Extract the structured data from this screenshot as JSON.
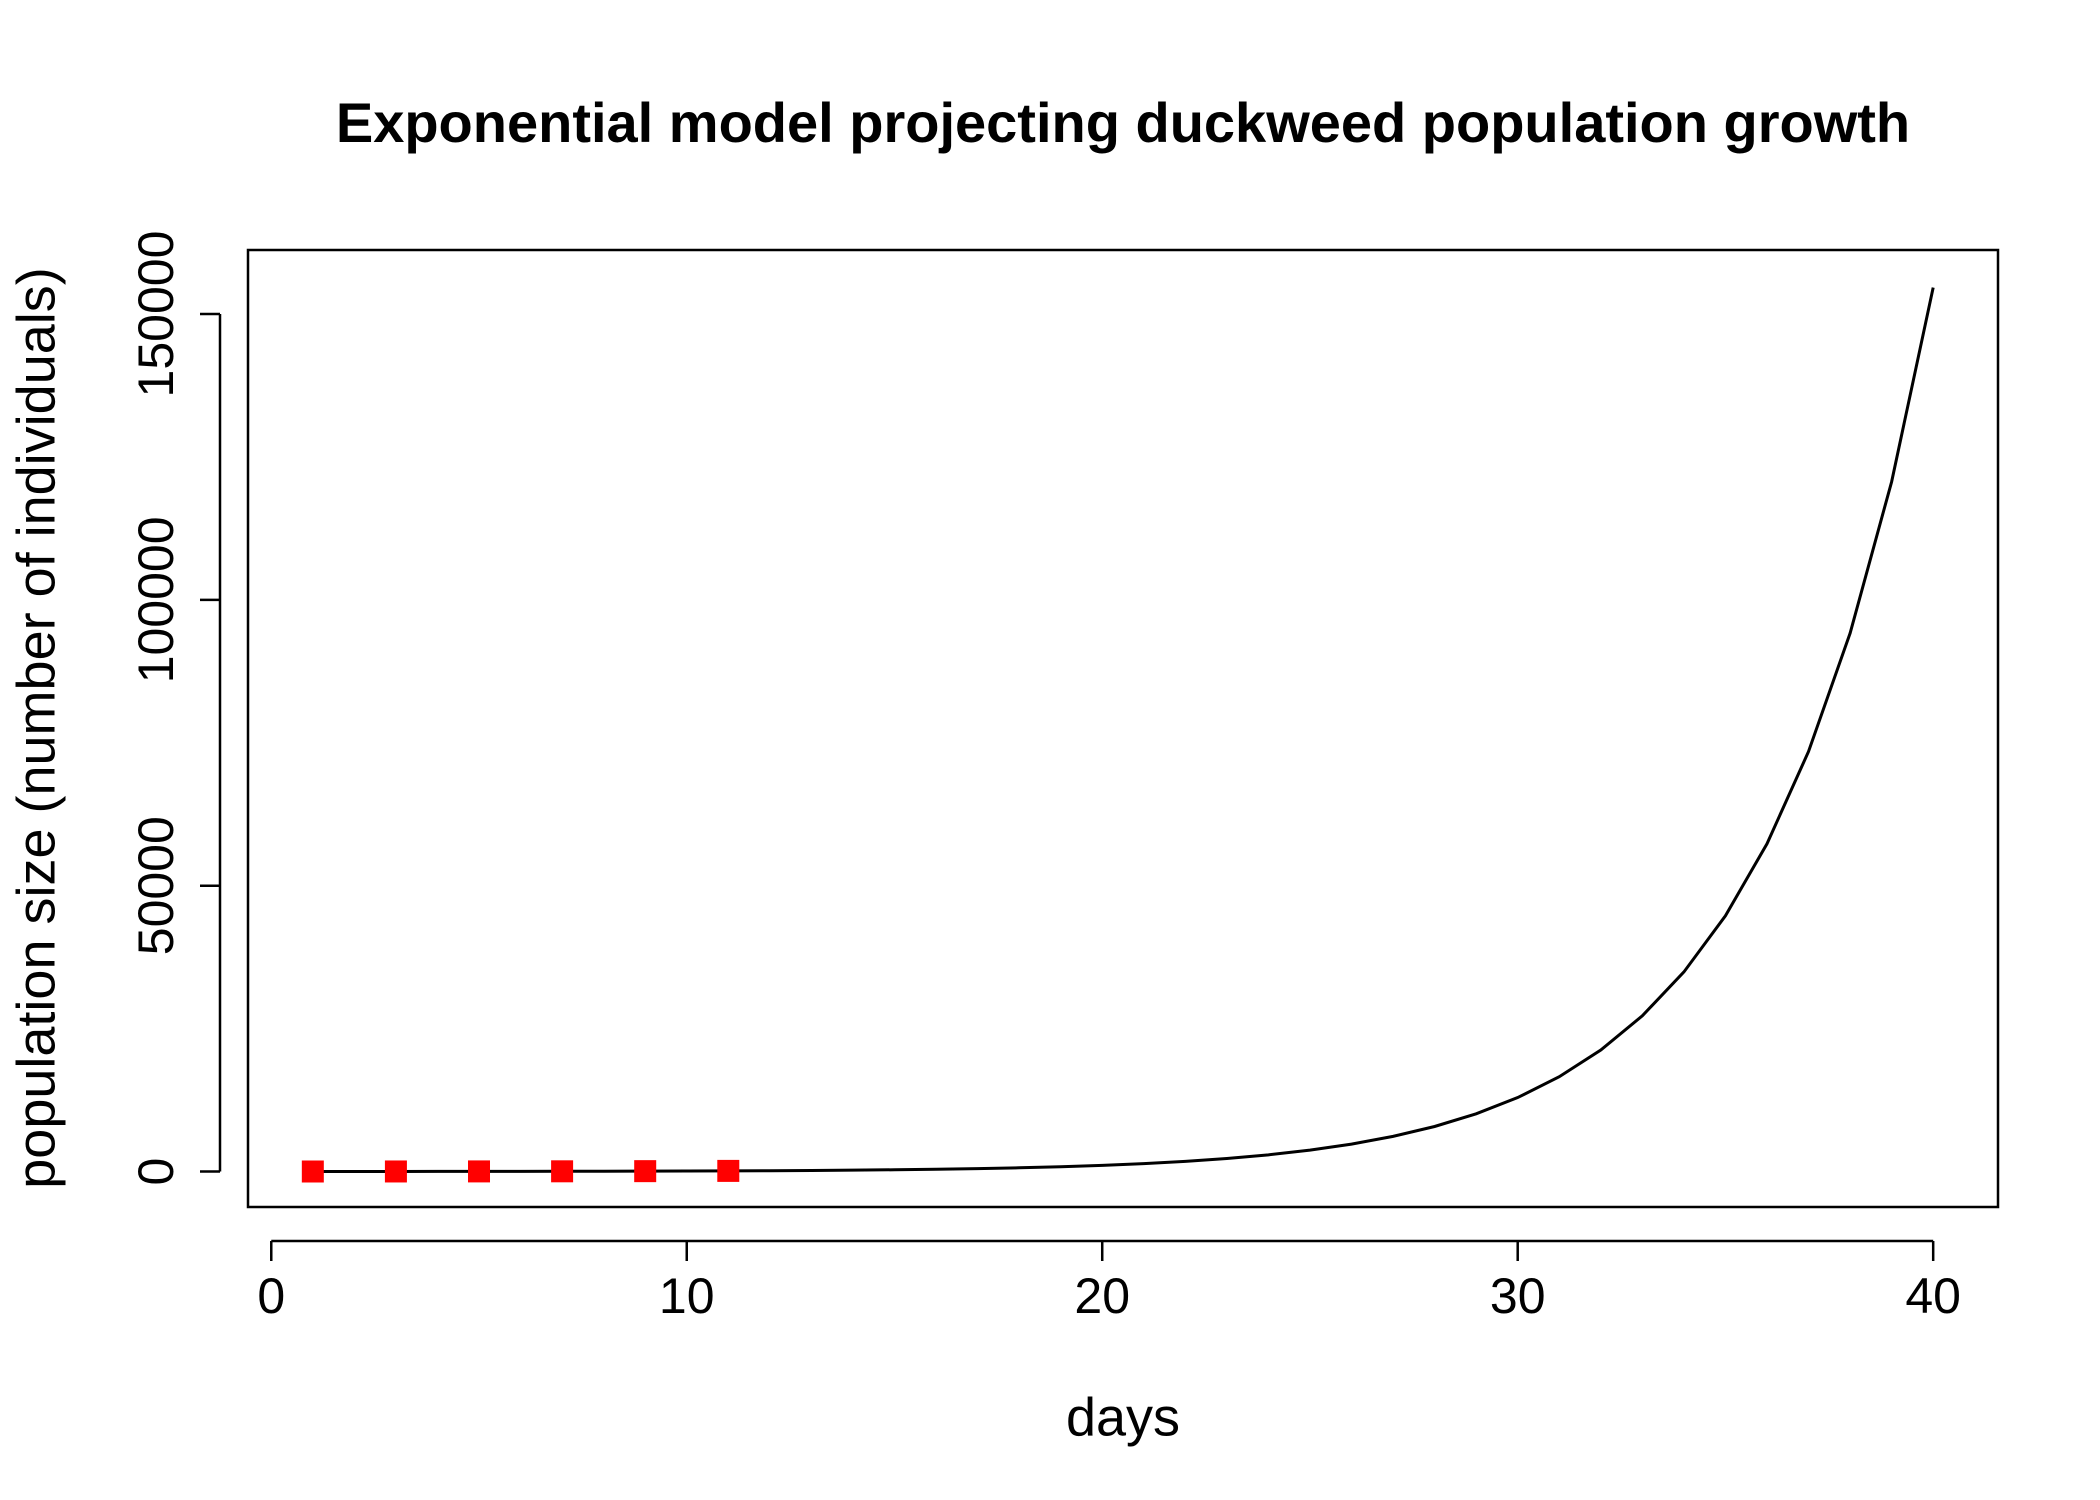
{
  "chart_data": {
    "type": "line",
    "title": "Exponential model projecting duckweed population growth",
    "xlabel": "days",
    "ylabel": "population size (number of individuals)",
    "series": [
      {
        "type": "line",
        "color": "#000000",
        "x": [
          1,
          2,
          3,
          4,
          5,
          6,
          7,
          8,
          9,
          10,
          11,
          12,
          13,
          14,
          15,
          16,
          17,
          18,
          19,
          20,
          21,
          22,
          23,
          24,
          25,
          26,
          27,
          28,
          29,
          30,
          31,
          32,
          33,
          34,
          35,
          36,
          37,
          38,
          39,
          40
        ],
        "values": [
          10,
          13,
          16,
          21,
          26,
          34,
          43,
          55,
          71,
          91,
          116,
          149,
          191,
          245,
          314,
          402,
          515,
          660,
          846,
          1084,
          1389,
          1780,
          2281,
          2923,
          3746,
          4800,
          6151,
          7883,
          10102,
          12946,
          16590,
          21260,
          27245,
          34914,
          44742,
          57337,
          73477,
          94161,
          120667,
          154635
        ]
      },
      {
        "type": "scatter",
        "color": "#ff0000",
        "x": [
          1,
          3,
          5,
          7,
          9,
          11
        ],
        "values": [
          10,
          16,
          26,
          43,
          71,
          116
        ]
      }
    ],
    "xlim": [
      -0.56,
      41.56
    ],
    "ylim": [
      -6200,
      161200
    ],
    "xticks": [
      0,
      10,
      20,
      30,
      40
    ],
    "yticks": [
      0,
      50000,
      100000,
      150000
    ]
  }
}
